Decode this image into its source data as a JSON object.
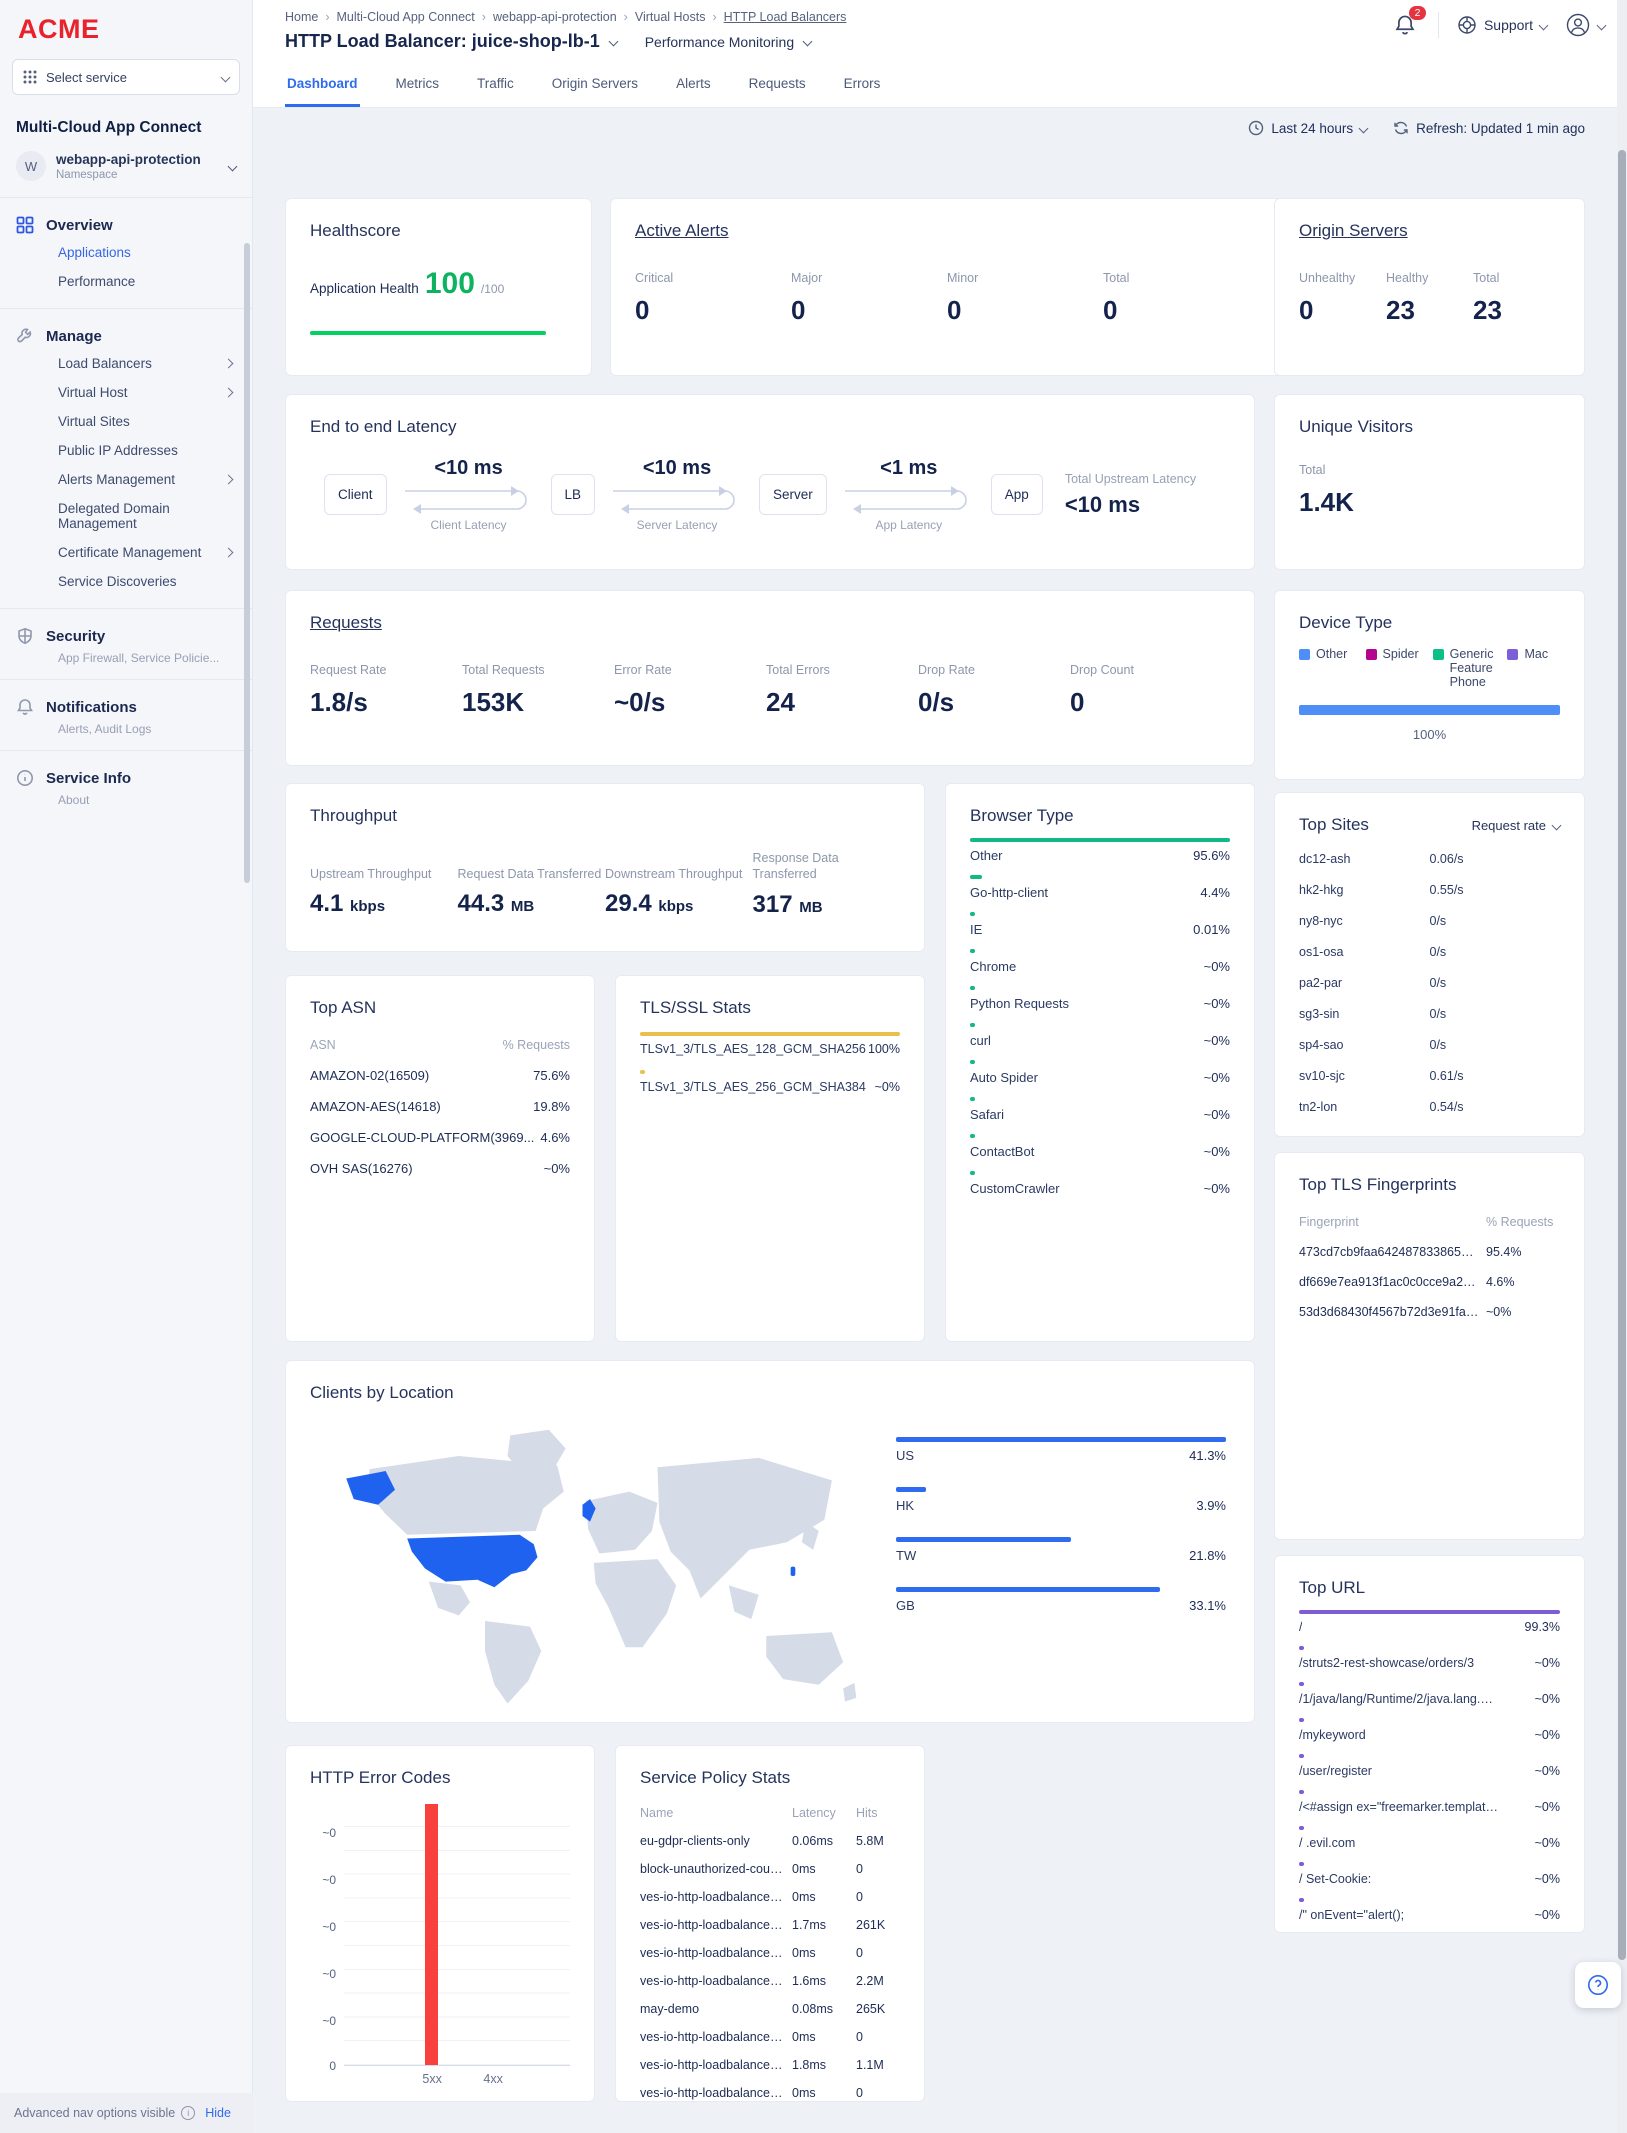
{
  "brand": {
    "logo": "ACME",
    "select_service": "Select service"
  },
  "header": {
    "breadcrumbs": [
      "Home",
      "Multi-Cloud App Connect",
      "webapp-api-protection",
      "Virtual Hosts",
      "HTTP Load Balancers"
    ],
    "title": "HTTP Load Balancer: juice-shop-lb-1",
    "subtitle": "Performance Monitoring",
    "notification_count": "2",
    "support_label": "Support"
  },
  "tabs": [
    {
      "label": "Dashboard",
      "active": true
    },
    {
      "label": "Metrics"
    },
    {
      "label": "Traffic"
    },
    {
      "label": "Origin Servers"
    },
    {
      "label": "Alerts"
    },
    {
      "label": "Requests"
    },
    {
      "label": "Errors"
    }
  ],
  "controls": {
    "time_range": "Last 24 hours",
    "refresh": "Refresh: Updated 1 min ago"
  },
  "sidebar": {
    "product": "Multi-Cloud App Connect",
    "namespace": {
      "initial": "W",
      "name": "webapp-api-protection",
      "type": "Namespace"
    },
    "overview": {
      "label": "Overview",
      "items": [
        {
          "label": "Applications",
          "active": true
        },
        {
          "label": "Performance"
        }
      ]
    },
    "manage": {
      "label": "Manage",
      "items": [
        {
          "label": "Load Balancers",
          "chevron": true
        },
        {
          "label": "Virtual Host",
          "chevron": true
        },
        {
          "label": "Virtual Sites"
        },
        {
          "label": "Public IP Addresses"
        },
        {
          "label": "Alerts Management",
          "chevron": true
        },
        {
          "label": "Delegated Domain Management"
        },
        {
          "label": "Certificate Management",
          "chevron": true
        },
        {
          "label": "Service Discoveries"
        }
      ]
    },
    "security": {
      "label": "Security",
      "subtitle": "App Firewall, Service Policie..."
    },
    "notifications": {
      "label": "Notifications",
      "subtitle": "Alerts, Audit Logs"
    },
    "service_info": {
      "label": "Service Info",
      "subtitle": "About"
    },
    "footer": {
      "text": "Advanced nav options visible",
      "action": "Hide"
    }
  },
  "cards": {
    "healthscore": {
      "title": "Healthscore",
      "label": "Application Health",
      "value": "100",
      "max": "/100"
    },
    "active_alerts": {
      "title": "Active Alerts",
      "metrics": [
        {
          "label": "Critical",
          "value": "0"
        },
        {
          "label": "Major",
          "value": "0"
        },
        {
          "label": "Minor",
          "value": "0"
        },
        {
          "label": "Total",
          "value": "0"
        }
      ]
    },
    "origin_servers": {
      "title": "Origin Servers",
      "metrics": [
        {
          "label": "Unhealthy",
          "value": "0"
        },
        {
          "label": "Healthy",
          "value": "23"
        },
        {
          "label": "Total",
          "value": "23"
        }
      ]
    },
    "latency": {
      "title": "End to end Latency",
      "nodes": [
        "Client",
        "LB",
        "Server",
        "App"
      ],
      "hops": [
        {
          "value": "<10 ms",
          "label": "Client Latency"
        },
        {
          "value": "<10 ms",
          "label": "Server Latency"
        },
        {
          "value": "<1 ms",
          "label": "App Latency"
        }
      ],
      "total_label": "Total Upstream Latency",
      "total_value": "<10 ms"
    },
    "unique_visitors": {
      "title": "Unique Visitors",
      "label": "Total",
      "value": "1.4K"
    },
    "requests": {
      "title": "Requests",
      "metrics": [
        {
          "label": "Request Rate",
          "value": "1.8/s"
        },
        {
          "label": "Total Requests",
          "value": "153K"
        },
        {
          "label": "Error Rate",
          "value": "~0/s"
        },
        {
          "label": "Total Errors",
          "value": "24"
        },
        {
          "label": "Drop Rate",
          "value": "0/s"
        },
        {
          "label": "Drop Count",
          "value": "0"
        }
      ]
    },
    "device_type": {
      "title": "Device Type",
      "bar_label": "100%",
      "legend": [
        {
          "label": "Other",
          "color": "#4d8ef7"
        },
        {
          "label": "Spider",
          "color": "#b50390"
        },
        {
          "label": "Generic Feature Phone",
          "color": "#0bbf87"
        },
        {
          "label": "Mac",
          "color": "#7a5fd8"
        }
      ]
    },
    "throughput": {
      "title": "Throughput",
      "metrics": [
        {
          "label": "Upstream Throughput",
          "value": "4.1",
          "unit": "kbps"
        },
        {
          "label": "Request Data Transferred",
          "value": "44.3",
          "unit": "MB"
        },
        {
          "label": "Downstream Throughput",
          "value": "29.4",
          "unit": "kbps"
        },
        {
          "label": "Response Data Transferred",
          "value": "317",
          "unit": "MB"
        }
      ]
    },
    "browser_type": {
      "title": "Browser Type",
      "rows": [
        {
          "name": "Other",
          "pct": "95.6%",
          "bar": 100
        },
        {
          "name": "Go-http-client",
          "pct": "4.4%",
          "bar": 4.6
        },
        {
          "name": "IE",
          "pct": "0.01%",
          "bar": 1
        },
        {
          "name": "Chrome",
          "pct": "~0%",
          "bar": 1
        },
        {
          "name": "Python Requests",
          "pct": "~0%",
          "bar": 1
        },
        {
          "name": "curl",
          "pct": "~0%",
          "bar": 1
        },
        {
          "name": "Auto Spider",
          "pct": "~0%",
          "bar": 1
        },
        {
          "name": "Safari",
          "pct": "~0%",
          "bar": 1
        },
        {
          "name": "ContactBot",
          "pct": "~0%",
          "bar": 1
        },
        {
          "name": "CustomCrawler",
          "pct": "~0%",
          "bar": 1
        }
      ]
    },
    "top_asn": {
      "title": "Top ASN",
      "col1": "ASN",
      "col2": "% Requests",
      "rows": [
        {
          "name": "AMAZON-02(16509)",
          "pct": "75.6%"
        },
        {
          "name": "AMAZON-AES(14618)",
          "pct": "19.8%"
        },
        {
          "name": "GOOGLE-CLOUD-PLATFORM(3969...",
          "pct": "4.6%"
        },
        {
          "name": "OVH SAS(16276)",
          "pct": "~0%"
        }
      ]
    },
    "tls_ssl": {
      "title": "TLS/SSL Stats",
      "rows": [
        {
          "name": "TLSv1_3/TLS_AES_128_GCM_SHA256",
          "pct": "100%",
          "bar": 100
        },
        {
          "name": "TLSv1_3/TLS_AES_256_GCM_SHA384",
          "pct": "~0%",
          "bar": 1
        }
      ]
    },
    "top_sites": {
      "title": "Top Sites",
      "sort_label": "Request rate",
      "rows": [
        {
          "name": "dc12-ash",
          "value": "0.06/s"
        },
        {
          "name": "hk2-hkg",
          "value": "0.55/s"
        },
        {
          "name": "ny8-nyc",
          "value": "0/s"
        },
        {
          "name": "os1-osa",
          "value": "0/s"
        },
        {
          "name": "pa2-par",
          "value": "0/s"
        },
        {
          "name": "sg3-sin",
          "value": "0/s"
        },
        {
          "name": "sp4-sao",
          "value": "0/s"
        },
        {
          "name": "sv10-sjc",
          "value": "0.61/s"
        },
        {
          "name": "tn2-lon",
          "value": "0.54/s"
        }
      ]
    },
    "top_tls_fingerprints": {
      "title": "Top TLS Fingerprints",
      "col1": "Fingerprint",
      "col2": "% Requests",
      "rows": [
        {
          "name": "473cd7cb9faa642487833865d516...",
          "pct": "95.4%"
        },
        {
          "name": "df669e7ea913f1ac0c0cce9a201a2...",
          "pct": "4.6%"
        },
        {
          "name": "53d3d68430f4567b72d3e91fa8ce...",
          "pct": "~0%"
        }
      ]
    },
    "clients_by_location": {
      "title": "Clients by Location",
      "rows": [
        {
          "name": "US",
          "pct": "41.3%",
          "bar": 100
        },
        {
          "name": "HK",
          "pct": "3.9%",
          "bar": 9
        },
        {
          "name": "TW",
          "pct": "21.8%",
          "bar": 53
        },
        {
          "name": "GB",
          "pct": "33.1%",
          "bar": 80
        }
      ]
    },
    "top_url": {
      "title": "Top URL",
      "rows": [
        {
          "name": "/",
          "pct": "99.3%",
          "bar": 100
        },
        {
          "name": "/struts2-rest-showcase/orders/3",
          "pct": "~0%",
          "bar": 1
        },
        {
          "name": "/1/java/lang/Runtime/2/java.lang.Runt...",
          "pct": "~0%",
          "bar": 1
        },
        {
          "name": "/mykeyword",
          "pct": "~0%",
          "bar": 1
        },
        {
          "name": "/user/register",
          "pct": "~0%",
          "bar": 1
        },
        {
          "name": "/<#assign ex=\"freemarker.template.u...",
          "pct": "~0%",
          "bar": 1
        },
        {
          "name": "/ .evil.com",
          "pct": "~0%",
          "bar": 1
        },
        {
          "name": "/ Set-Cookie:",
          "pct": "~0%",
          "bar": 1
        },
        {
          "name": "/\" onEvent=\"alert();",
          "pct": "~0%",
          "bar": 1
        }
      ]
    },
    "http_error_codes": {
      "title": "HTTP Error Codes",
      "y_labels": [
        {
          "t": "~0"
        },
        {
          "t": "~0"
        },
        {
          "t": "~0"
        },
        {
          "t": "~0"
        },
        {
          "t": "~0"
        },
        {
          "t": "0"
        }
      ],
      "x_labels": [
        {
          "t": "5xx"
        },
        {
          "t": "4xx"
        }
      ],
      "bar_category": "5xx",
      "bar_color": "#f8413d"
    },
    "service_policy": {
      "title": "Service Policy Stats",
      "cols": {
        "name": "Name",
        "latency": "Latency",
        "hits": "Hits"
      },
      "rows": [
        {
          "name": "eu-gdpr-clients-only",
          "latency": "0.06ms",
          "hits": "5.8M"
        },
        {
          "name": "block-unauthorized-countries",
          "latency": "0ms",
          "hits": "0"
        },
        {
          "name": "ves-io-http-loadbalancer-ip-rep...",
          "latency": "0ms",
          "hits": "0"
        },
        {
          "name": "ves-io-http-loadbalancer-rate-li...",
          "latency": "1.7ms",
          "hits": "261K"
        },
        {
          "name": "ves-io-http-loadbalancer-ip-rep...",
          "latency": "0ms",
          "hits": "0"
        },
        {
          "name": "ves-io-http-loadbalancer-rate-li...",
          "latency": "1.6ms",
          "hits": "2.2M"
        },
        {
          "name": "may-demo",
          "latency": "0.08ms",
          "hits": "265K"
        },
        {
          "name": "ves-io-http-loadbalancer-ip-rep...",
          "latency": "0ms",
          "hits": "0"
        },
        {
          "name": "ves-io-http-loadbalancer-rate-li...",
          "latency": "1.8ms",
          "hits": "1.1M"
        },
        {
          "name": "ves-io-http-loadbalancer-ip-rep...",
          "latency": "0ms",
          "hits": "0"
        }
      ]
    }
  }
}
